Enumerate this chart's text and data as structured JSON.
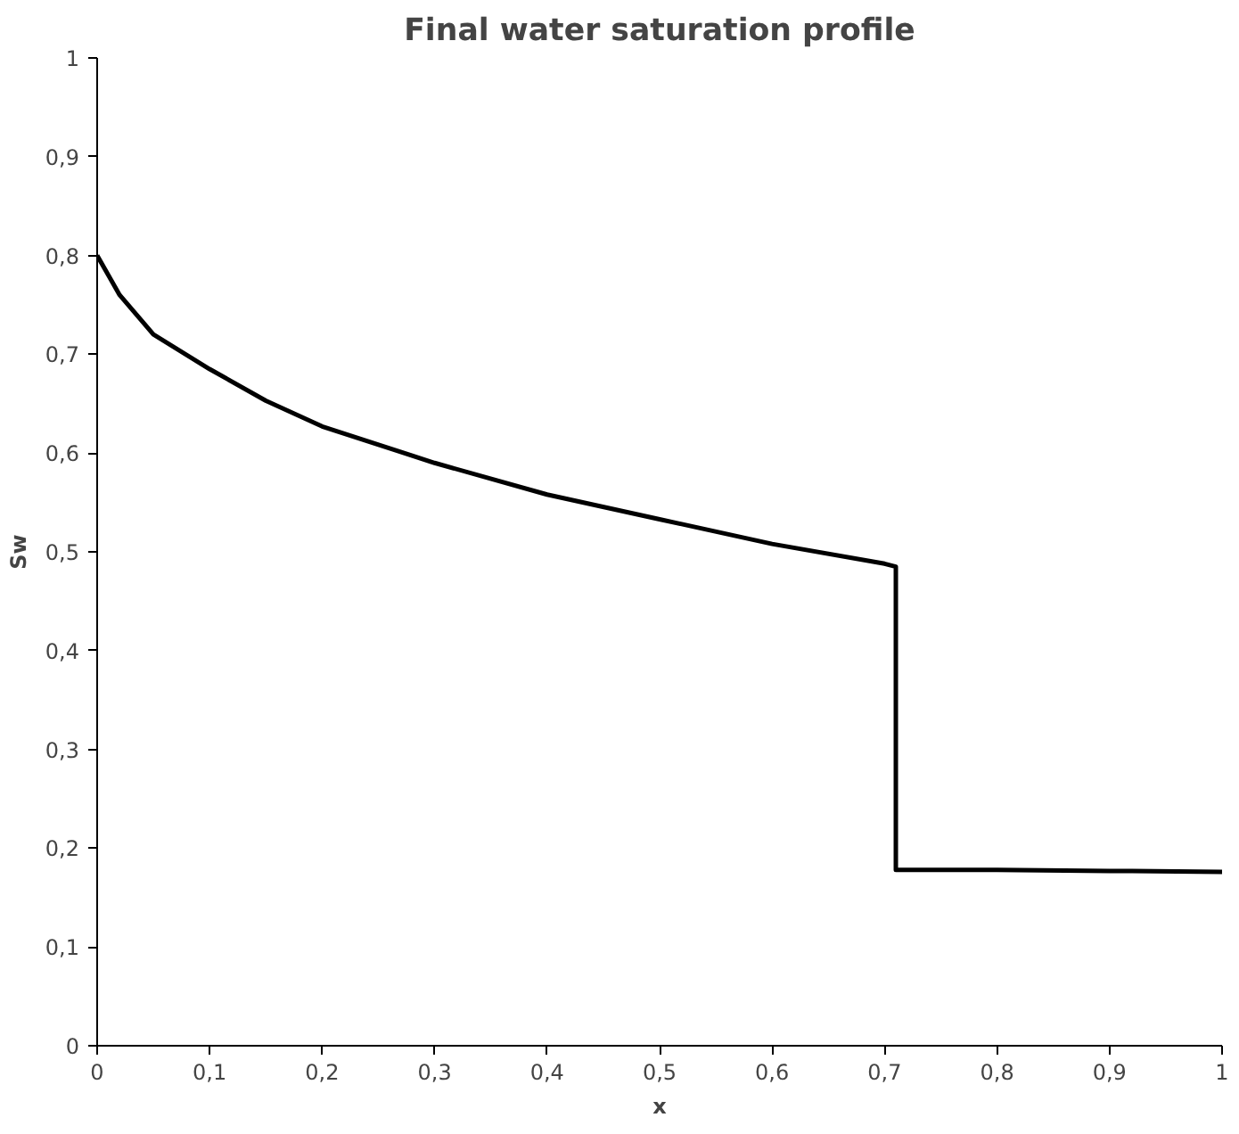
{
  "chart_data": {
    "type": "line",
    "title": "Final water saturation profile",
    "xlabel": "x",
    "ylabel": "Sw",
    "xlim": [
      0,
      1
    ],
    "ylim": [
      0,
      1
    ],
    "xticks": [
      0,
      {
        "value": 0.1,
        "label": "0,1"
      },
      {
        "value": 0.2,
        "label": "0,2"
      },
      {
        "value": 0.3,
        "label": "0,3"
      },
      {
        "value": 0.4,
        "label": "0,4"
      },
      {
        "value": 0.5,
        "label": "0,5"
      },
      {
        "value": 0.6,
        "label": "0,6"
      },
      {
        "value": 0.7,
        "label": "0,7"
      },
      {
        "value": 0.8,
        "label": "0,8"
      },
      {
        "value": 0.9,
        "label": "0,9"
      },
      1
    ],
    "yticks": [
      0,
      {
        "value": 0.1,
        "label": "0,1"
      },
      {
        "value": 0.2,
        "label": "0,2"
      },
      {
        "value": 0.3,
        "label": "0,3"
      },
      {
        "value": 0.4,
        "label": "0,4"
      },
      {
        "value": 0.5,
        "label": "0,5"
      },
      {
        "value": 0.6,
        "label": "0,6"
      },
      {
        "value": 0.7,
        "label": "0,7"
      },
      {
        "value": 0.8,
        "label": "0,8"
      },
      {
        "value": 0.9,
        "label": "0,9"
      },
      1
    ],
    "grid": false,
    "marker": "none",
    "line_style": "solid",
    "series": [
      {
        "color": "#000000",
        "x": [
          0,
          0.01,
          0.02,
          0.05,
          0.1,
          0.15,
          0.2,
          0.3,
          0.4,
          0.5,
          0.6,
          0.7,
          0.71,
          0.71,
          0.8,
          0.9,
          1.0
        ],
        "values": [
          0.8,
          0.78,
          0.76,
          0.72,
          0.685,
          0.653,
          0.627,
          0.59,
          0.558,
          0.533,
          0.508,
          0.488,
          0.485,
          0.178,
          0.178,
          0.177,
          0.176
        ]
      }
    ]
  }
}
